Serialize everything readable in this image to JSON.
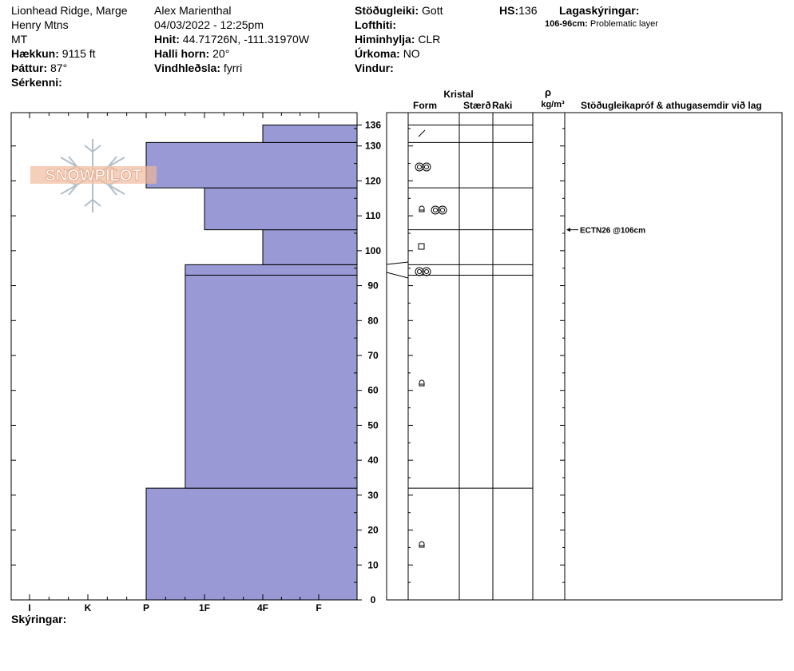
{
  "header": {
    "location": "Lionhead Ridge, Marge",
    "range": "Henry Mtns",
    "state": "MT",
    "elevation_label": "Hækkun:",
    "elevation_value": "9115 ft",
    "aspect_label": "Þáttur:",
    "aspect_value": "87°",
    "specifics_label": "Sérkenni:",
    "observer": "Alex Marienthal",
    "datetime": "04/03/2022 - 12:25pm",
    "coords_label": "Hnit:",
    "coords_value": "44.71726N, -111.31970W",
    "slope_label": "Halli horn:",
    "slope_value": "20°",
    "wind_loading_label": "Vindhleðsla:",
    "wind_loading_value": "fyrri",
    "stability_label": "Stöðugleiki:",
    "stability_value": "Gott",
    "air_temp_label": "Lofthiti:",
    "sky_label": "Himinhylja:",
    "sky_value": "CLR",
    "precip_label": "Úrkoma:",
    "precip_value": "NO",
    "wind_label": "Vindur:",
    "hs_label": "HS:",
    "hs_value": "136",
    "layer_notes_label": "Lagaskýringar:",
    "layer_note_range": "106-96cm:",
    "layer_note_text": "Problematic layer"
  },
  "logo": {
    "text": "SNOWPILOT"
  },
  "columns": {
    "crystal": "Kristal",
    "form": "Form",
    "size": "Stærð",
    "moisture": "Raki",
    "rho": "ρ",
    "density_unit": "kg/m³",
    "tests": "Stöðugleikapróf & athugasemdir við lag"
  },
  "footer": {
    "legend_label": "Skýringar:"
  },
  "colors": {
    "hardness_fill": "#9999d6",
    "line": "#000000",
    "logo": "#e8a080"
  },
  "chart_data": {
    "type": "bar",
    "title": "",
    "y_axis": {
      "min": 0,
      "max": 136,
      "ticks": [
        0,
        10,
        20,
        30,
        40,
        50,
        60,
        70,
        80,
        90,
        100,
        110,
        120,
        130,
        136
      ]
    },
    "hardness_scale": [
      "I",
      "K",
      "P",
      "1F",
      "4F",
      "F"
    ],
    "layers": [
      {
        "bottom": 0,
        "top": 32,
        "hardness": "P",
        "hardness_index": 2.0,
        "form": "rounded-faceted-icon"
      },
      {
        "bottom": 32,
        "top": 93,
        "hardness": "P+",
        "hardness_index": 2.67,
        "form": "rounded-faceted-icon"
      },
      {
        "bottom": 93,
        "top": 96,
        "hardness": "1F-",
        "hardness_index": 2.67,
        "form": "melt-clusters-icon"
      },
      {
        "bottom": 96,
        "top": 106,
        "hardness": "4F",
        "hardness_index": 4.0,
        "form": "facet-icon"
      },
      {
        "bottom": 106,
        "top": 118,
        "hardness": "1F+",
        "hardness_index": 3.0,
        "form": "rounded-faceted-icon"
      },
      {
        "bottom": 118,
        "top": 131,
        "hardness": "P",
        "hardness_index": 2.0,
        "form": "melt-clusters-icon"
      },
      {
        "bottom": 131,
        "top": 136,
        "hardness": "4F",
        "hardness_index": 4.0,
        "form": "precip-particle-icon"
      }
    ],
    "tests": [
      {
        "depth": 106,
        "label": "ECTN26 @106cm"
      }
    ]
  }
}
